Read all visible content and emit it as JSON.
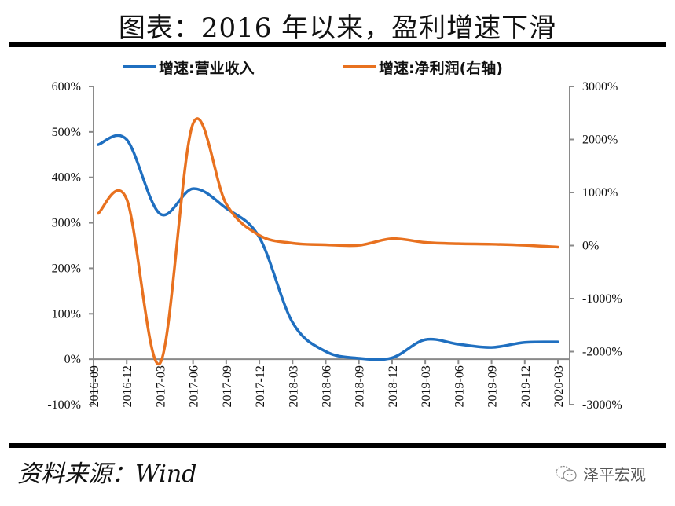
{
  "header": {
    "title": "图表：2016 年以来，盈利增速下滑"
  },
  "legend": [
    {
      "label": "增速:营业收入",
      "color": "#1f6fc0"
    },
    {
      "label": "增速:净利润(右轴)",
      "color": "#e8711f"
    }
  ],
  "footer": {
    "source": "资料来源：Wind",
    "watermark": "泽平宏观"
  },
  "chart_data": {
    "type": "line",
    "title": "图表：2016 年以来，盈利增速下滑",
    "xlabel": "",
    "ylabel": "",
    "categories": [
      "2016-09",
      "2016-12",
      "2017-03",
      "2017-06",
      "2017-09",
      "2017-12",
      "2018-03",
      "2018-06",
      "2018-09",
      "2018-12",
      "2019-03",
      "2019-06",
      "2019-09",
      "2019-12",
      "2020-03"
    ],
    "series": [
      {
        "name": "增速:营业收入",
        "axis": "left",
        "color": "#1f6fc0",
        "values": [
          472,
          483,
          320,
          375,
          332,
          268,
          81,
          17,
          2,
          3,
          43,
          33,
          26,
          37,
          38
        ]
      },
      {
        "name": "增速:净利润(右轴)",
        "axis": "right",
        "color": "#e8711f",
        "values": [
          607,
          874,
          -2222,
          2300,
          785,
          193,
          45,
          15,
          5,
          130,
          60,
          35,
          25,
          5,
          -30
        ]
      }
    ],
    "y_left": {
      "ylim": [
        -100,
        600
      ],
      "ticks": [
        600,
        500,
        400,
        300,
        200,
        100,
        0,
        -100
      ],
      "tick_labels": [
        "600%",
        "500%",
        "400%",
        "300%",
        "200%",
        "100%",
        "0%",
        "-100%"
      ]
    },
    "y_right": {
      "ylim": [
        -3000,
        3000
      ],
      "ticks": [
        3000,
        2000,
        1000,
        0,
        -1000,
        -2000,
        -3000
      ],
      "tick_labels": [
        "3000%",
        "2000%",
        "1000%",
        "0%",
        "-1000%",
        "-2000%",
        "-3000%"
      ]
    },
    "grid": false,
    "legend_position": "top",
    "smoothed": true
  }
}
